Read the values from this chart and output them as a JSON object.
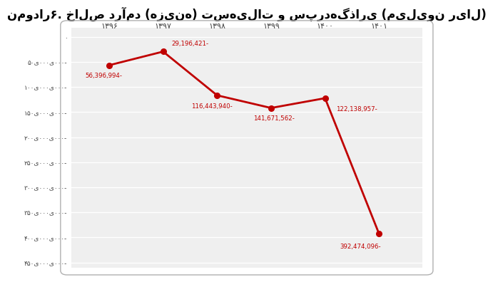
{
  "title": "نمودار۶. خالص درآمد (هزینه) تسهیلات و سپردهگذاری (میلیون ریال)",
  "x_labels": [
    "۱۳۹۶",
    "۱۳۹۷",
    "۱۳۹۸",
    "۱۳۹۹",
    "۱۴۰۰",
    "۱۴۰۱"
  ],
  "x_values": [
    1396,
    1397,
    1398,
    1399,
    1400,
    1401
  ],
  "y_values": [
    -56396994,
    -29196421,
    -116443940,
    -141671562,
    -122138957,
    -392474096
  ],
  "point_labels": [
    "56,396,994-",
    "29,196,421-",
    "116,443,940-",
    "141,671,562-",
    "122,138,957-",
    "392,474,096-"
  ],
  "point_label_offsets_x": [
    -0.1,
    0.15,
    -0.1,
    0.05,
    0.2,
    -0.35
  ],
  "point_label_offsets_y": [
    -14000000,
    10000000,
    -14000000,
    -14000000,
    -14000000,
    -18000000
  ],
  "point_label_ha": [
    "center",
    "left",
    "center",
    "center",
    "left",
    "center"
  ],
  "point_label_va": [
    "top",
    "bottom",
    "top",
    "top",
    "top",
    "top"
  ],
  "line_color": "#c00000",
  "marker_color": "#c00000",
  "title_fontsize": 12,
  "ylim_min": -460000000,
  "ylim_max": 18000000,
  "ytick_values": [
    0,
    -50000000,
    -100000000,
    -150000000,
    -200000000,
    -250000000,
    -300000000,
    -350000000,
    -400000000,
    -450000000
  ],
  "ytick_labels": [
    "۰",
    "۵۰ی۰۰۰ی۰۰۰-",
    "۱۰۰ی۰۰۰ی۰۰۰-",
    "۱۵۰ی۰۰۰ی۰۰۰-",
    "۲۰۰ی۰۰۰ی۰۰۰-",
    "۲۵۰ی۰۰۰ی۰۰۰-",
    "۳۰۰ی۰۰۰ی۰۰۰-",
    "۳۵۰ی۰۰۰ی۰۰۰-",
    "۴۰۰ی۰۰۰ی۰۰۰-",
    "۴۵۰ی۰۰۰ی۰۰۰-"
  ]
}
